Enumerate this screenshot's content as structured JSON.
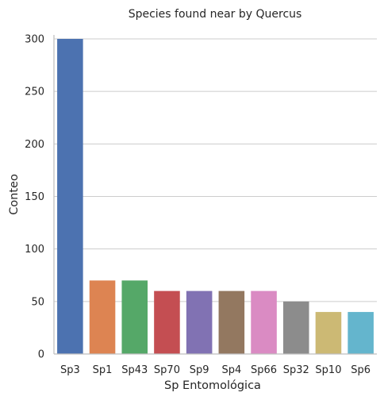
{
  "chart_data": {
    "type": "bar",
    "title": "Species found near by Quercus",
    "xlabel": "Sp Entomológica",
    "ylabel": "Conteo",
    "categories": [
      "Sp3",
      "Sp1",
      "Sp43",
      "Sp70",
      "Sp9",
      "Sp4",
      "Sp66",
      "Sp32",
      "Sp10",
      "Sp6"
    ],
    "values": [
      300,
      70,
      70,
      60,
      60,
      60,
      60,
      50,
      40,
      40
    ],
    "colors": [
      "#4c72b0",
      "#dd8452",
      "#55a868",
      "#c44e52",
      "#8172b3",
      "#937860",
      "#da8bc3",
      "#8c8c8c",
      "#ccb974",
      "#64b5cd"
    ],
    "ylim": [
      0,
      316
    ],
    "yticks": [
      0,
      50,
      100,
      150,
      200,
      250,
      300
    ],
    "grid": "horizontal",
    "legend": "none"
  }
}
